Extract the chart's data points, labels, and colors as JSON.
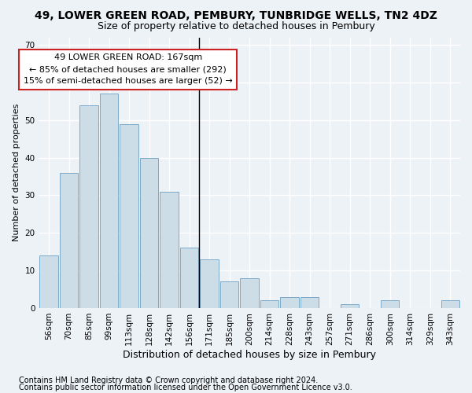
{
  "title1": "49, LOWER GREEN ROAD, PEMBURY, TUNBRIDGE WELLS, TN2 4DZ",
  "title2": "Size of property relative to detached houses in Pembury",
  "xlabel": "Distribution of detached houses by size in Pembury",
  "ylabel": "Number of detached properties",
  "bin_labels": [
    "56sqm",
    "70sqm",
    "85sqm",
    "99sqm",
    "113sqm",
    "128sqm",
    "142sqm",
    "156sqm",
    "171sqm",
    "185sqm",
    "200sqm",
    "214sqm",
    "228sqm",
    "243sqm",
    "257sqm",
    "271sqm",
    "286sqm",
    "300sqm",
    "314sqm",
    "329sqm",
    "343sqm"
  ],
  "bar_heights": [
    14,
    36,
    54,
    57,
    49,
    40,
    31,
    16,
    13,
    7,
    8,
    2,
    3,
    3,
    0,
    1,
    0,
    2,
    0,
    0,
    2
  ],
  "bar_color": "#ccdde8",
  "bar_edge_color": "#7aaac8",
  "annotation_line1": "49 LOWER GREEN ROAD: 167sqm",
  "annotation_line2": "← 85% of detached houses are smaller (292)",
  "annotation_line3": "15% of semi-detached houses are larger (52) →",
  "annotation_box_facecolor": "#ffffff",
  "annotation_box_edgecolor": "#cc2222",
  "vline_x": 7.5,
  "ylim": [
    0,
    72
  ],
  "yticks": [
    0,
    10,
    20,
    30,
    40,
    50,
    60,
    70
  ],
  "footer1": "Contains HM Land Registry data © Crown copyright and database right 2024.",
  "footer2": "Contains public sector information licensed under the Open Government Licence v3.0.",
  "background_color": "#edf2f7",
  "grid_color": "#ffffff",
  "title1_fontsize": 10,
  "title2_fontsize": 9,
  "xlabel_fontsize": 9,
  "ylabel_fontsize": 8,
  "tick_fontsize": 7.5,
  "annotation_fontsize": 8,
  "footer_fontsize": 7
}
